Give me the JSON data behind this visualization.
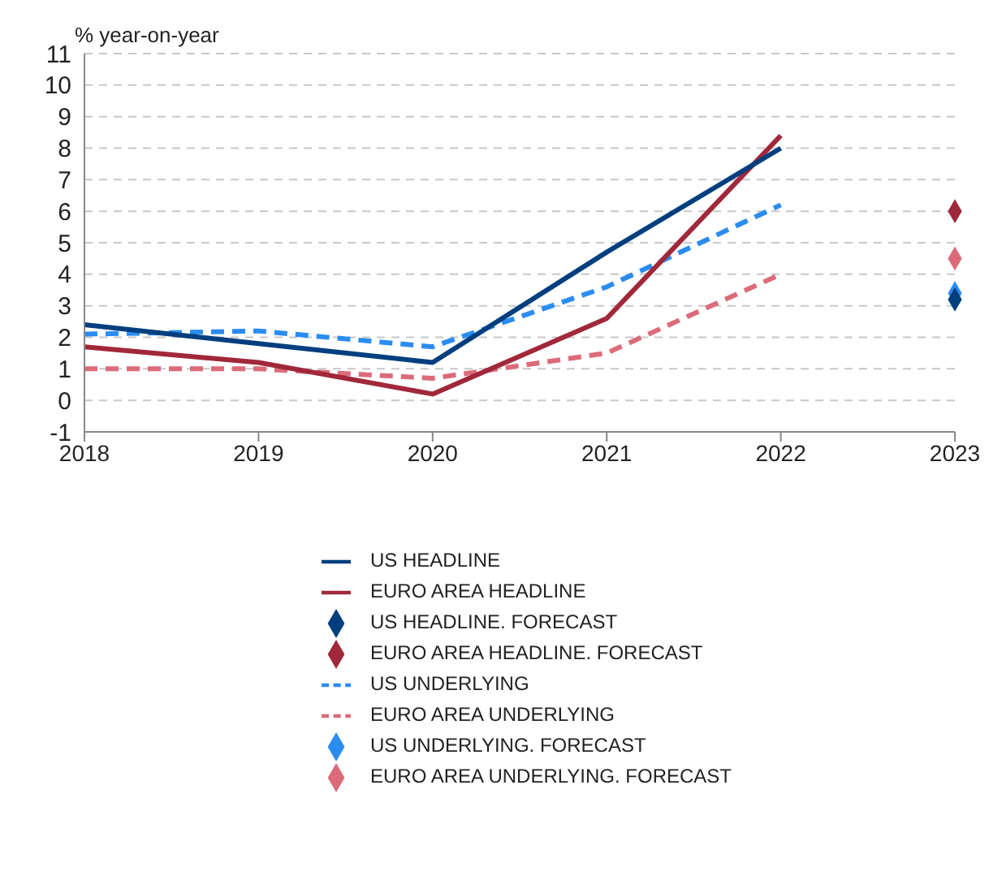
{
  "chart_data": {
    "type": "line",
    "ylabel": "% year-on-year",
    "categories": [
      "2018",
      "2019",
      "2020",
      "2021",
      "2022",
      "2023"
    ],
    "series": [
      {
        "name": "US HEADLINE",
        "type": "line",
        "line_style": "solid",
        "color": "#003f7f",
        "values": [
          2.4,
          1.8,
          1.2,
          4.7,
          8.0,
          null
        ]
      },
      {
        "name": "EURO AREA HEADLINE",
        "type": "line",
        "line_style": "solid",
        "color": "#a0283a",
        "values": [
          1.7,
          1.2,
          0.2,
          2.6,
          8.4,
          null
        ]
      },
      {
        "name": "US HEADLINE. FORECAST",
        "type": "scatter",
        "marker": "diamond",
        "color": "#003f7f",
        "values": [
          null,
          null,
          null,
          null,
          null,
          3.2
        ]
      },
      {
        "name": "EURO AREA HEADLINE. FORECAST",
        "type": "scatter",
        "marker": "diamond",
        "color": "#a0283a",
        "values": [
          null,
          null,
          null,
          null,
          null,
          6.0
        ]
      },
      {
        "name": "US UNDERLYING",
        "type": "line",
        "line_style": "dashed",
        "color": "#2b8cf0",
        "values": [
          2.1,
          2.2,
          1.7,
          3.6,
          6.2,
          null
        ]
      },
      {
        "name": "EURO AREA UNDERLYING",
        "type": "line",
        "line_style": "dashed",
        "color": "#dc6b7a",
        "values": [
          1.0,
          1.0,
          0.7,
          1.5,
          4.0,
          null
        ]
      },
      {
        "name": "US UNDERLYING. FORECAST",
        "type": "scatter",
        "marker": "diamond",
        "color": "#2b8cf0",
        "values": [
          null,
          null,
          null,
          null,
          null,
          3.4
        ]
      },
      {
        "name": "EURO AREA UNDERLYING. FORECAST",
        "type": "scatter",
        "marker": "diamond",
        "color": "#dc6b7a",
        "values": [
          null,
          null,
          null,
          null,
          null,
          4.5
        ]
      }
    ],
    "ylim": [
      -1,
      11
    ],
    "yticks": [
      -1,
      0,
      1,
      2,
      3,
      4,
      5,
      6,
      7,
      8,
      9,
      10,
      11
    ],
    "grid": "y",
    "legend": "bottom"
  }
}
